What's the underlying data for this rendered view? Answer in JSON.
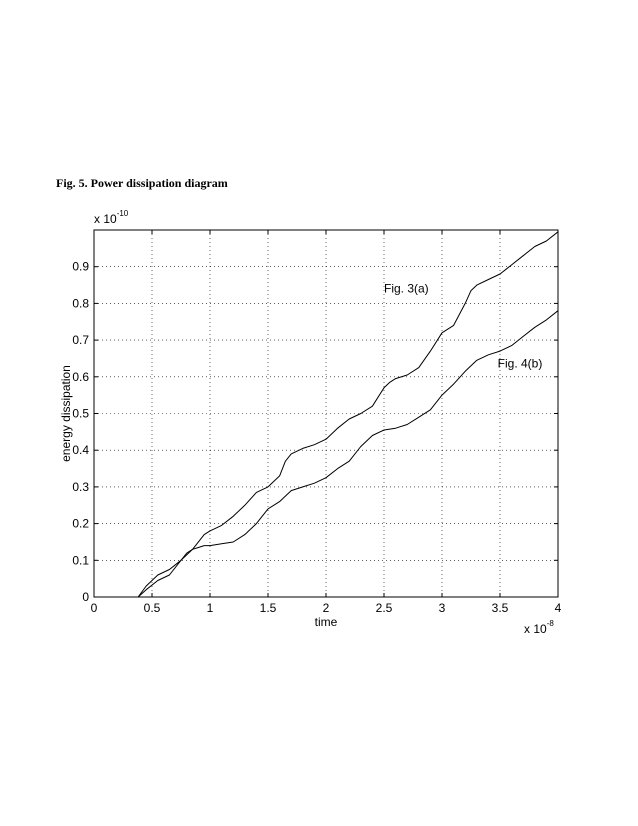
{
  "caption": "Fig. 5. Power dissipation diagram",
  "chart_data": {
    "type": "line",
    "title": "",
    "xlabel": "time",
    "ylabel": "energy dissipation",
    "xlim": [
      0,
      4
    ],
    "ylim": [
      0,
      1
    ],
    "x_multiplier": "x 10",
    "x_multiplier_exp": "-8",
    "y_multiplier": "x 10",
    "y_multiplier_exp": "-10",
    "xticks": [
      0,
      0.5,
      1,
      1.5,
      2,
      2.5,
      3,
      3.5,
      4
    ],
    "xtick_labels": [
      "0",
      "0.5",
      "1",
      "1.5",
      "2",
      "2.5",
      "3",
      "3.5",
      "4"
    ],
    "yticks": [
      0,
      0.1,
      0.2,
      0.3,
      0.4,
      0.5,
      0.6,
      0.7,
      0.8,
      0.9
    ],
    "ytick_labels": [
      "0",
      "0.1",
      "0.2",
      "0.3",
      "0.4",
      "0.5",
      "0.6",
      "0.7",
      "0.8",
      "0.9"
    ],
    "grid": true,
    "series": [
      {
        "name": "Fig. 3(a)",
        "color": "#000000",
        "x": [
          0.38,
          0.45,
          0.55,
          0.65,
          0.75,
          0.85,
          0.95,
          1.0,
          1.1,
          1.2,
          1.3,
          1.4,
          1.5,
          1.6,
          1.65,
          1.7,
          1.8,
          1.9,
          2.0,
          2.1,
          2.2,
          2.3,
          2.4,
          2.5,
          2.55,
          2.6,
          2.7,
          2.8,
          2.9,
          3.0,
          3.1,
          3.2,
          3.25,
          3.3,
          3.4,
          3.5,
          3.6,
          3.7,
          3.8,
          3.9,
          4.0
        ],
        "y": [
          0.0,
          0.03,
          0.06,
          0.075,
          0.1,
          0.13,
          0.17,
          0.18,
          0.195,
          0.22,
          0.25,
          0.285,
          0.3,
          0.33,
          0.37,
          0.39,
          0.405,
          0.415,
          0.43,
          0.46,
          0.485,
          0.5,
          0.52,
          0.57,
          0.585,
          0.595,
          0.605,
          0.625,
          0.67,
          0.72,
          0.74,
          0.8,
          0.835,
          0.85,
          0.865,
          0.88,
          0.905,
          0.93,
          0.955,
          0.97,
          0.995
        ]
      },
      {
        "name": "Fig. 4(b)",
        "color": "#000000",
        "x": [
          0.38,
          0.45,
          0.55,
          0.65,
          0.75,
          0.8,
          0.85,
          0.9,
          0.95,
          1.0,
          1.1,
          1.2,
          1.3,
          1.4,
          1.5,
          1.6,
          1.7,
          1.8,
          1.9,
          2.0,
          2.1,
          2.2,
          2.3,
          2.4,
          2.5,
          2.6,
          2.7,
          2.8,
          2.9,
          3.0,
          3.1,
          3.2,
          3.3,
          3.4,
          3.5,
          3.6,
          3.7,
          3.8,
          3.9,
          4.0
        ],
        "y": [
          0.0,
          0.02,
          0.045,
          0.06,
          0.1,
          0.12,
          0.13,
          0.135,
          0.14,
          0.14,
          0.145,
          0.15,
          0.17,
          0.2,
          0.24,
          0.26,
          0.29,
          0.3,
          0.31,
          0.325,
          0.35,
          0.37,
          0.41,
          0.44,
          0.455,
          0.46,
          0.47,
          0.49,
          0.51,
          0.55,
          0.58,
          0.615,
          0.645,
          0.66,
          0.67,
          0.685,
          0.71,
          0.735,
          0.755,
          0.78
        ]
      }
    ],
    "annotations": [
      {
        "text": "Fig. 3(a)",
        "x": 2.5,
        "y": 0.83
      },
      {
        "text": "Fig. 4(b)",
        "x": 3.48,
        "y": 0.625
      }
    ]
  }
}
